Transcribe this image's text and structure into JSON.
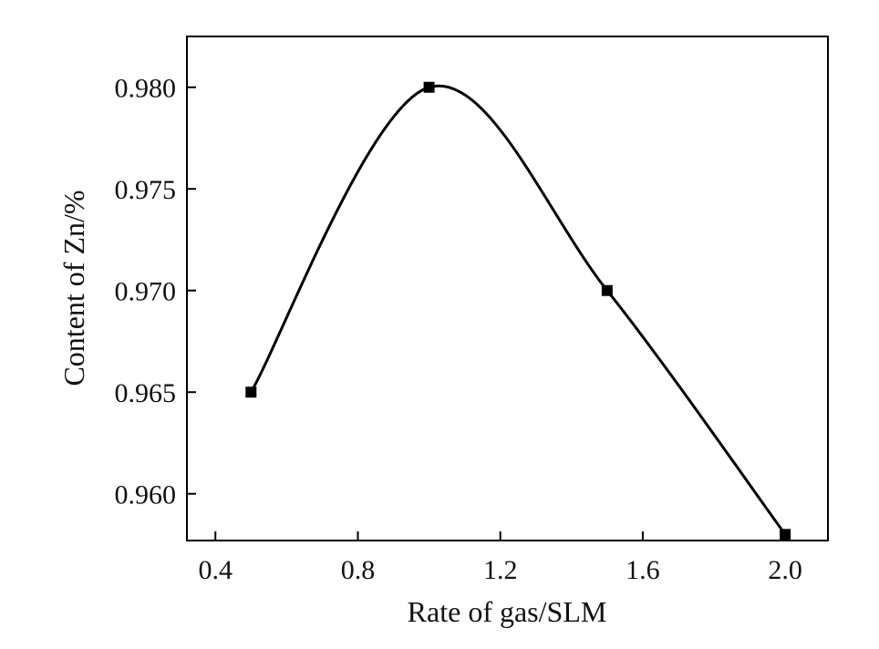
{
  "chart_data": {
    "type": "line",
    "title": "",
    "xlabel": "Rate of gas/SLM",
    "ylabel": "Content of Zn/%",
    "xlim": [
      0.32,
      2.12
    ],
    "ylim": [
      0.9577,
      0.9825
    ],
    "x_ticks": [
      "0.4",
      "0.8",
      "1.2",
      "1.6",
      "2.0"
    ],
    "y_ticks": [
      "0.960",
      "0.965",
      "0.970",
      "0.975",
      "0.980"
    ],
    "grid": false,
    "legend": "none",
    "smooth": true,
    "series": [
      {
        "marker": "square",
        "color": "#000000",
        "x": [
          0.5,
          1.0,
          1.5,
          2.0
        ],
        "y": [
          0.965,
          0.98,
          0.97,
          0.958
        ]
      }
    ]
  }
}
